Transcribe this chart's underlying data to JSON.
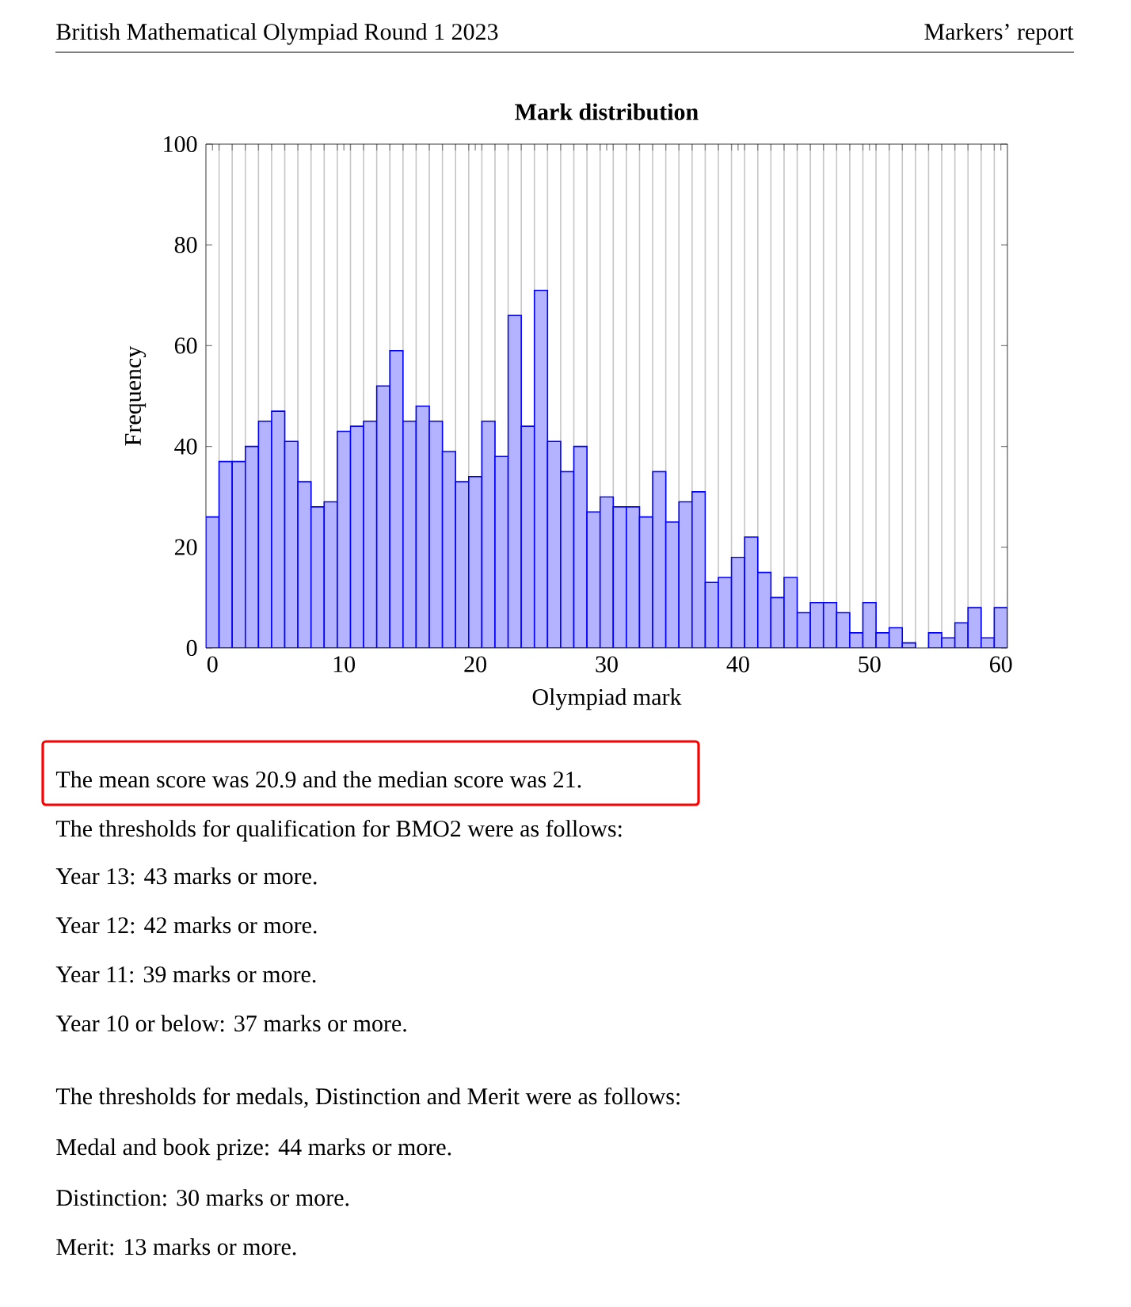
{
  "chart_data": {
    "type": "histogram",
    "title": "Mark distribution",
    "xlabel": "Olympiad mark",
    "ylabel": "Frequency",
    "bins": [
      -0.5,
      0.5,
      1.5,
      2.5,
      3.5,
      4.5,
      5.5,
      6.5,
      7.5,
      8.5,
      9.5,
      10.5,
      11.5,
      12.5,
      13.5,
      14.5,
      15.5,
      16.5,
      17.5,
      18.5,
      19.5,
      20.5,
      21.5,
      22.5,
      23.5,
      24.5,
      25.5,
      26.5,
      27.5,
      28.5,
      29.5,
      30.5,
      31.5,
      32.5,
      33.5,
      34.5,
      35.5,
      36.5,
      37.5,
      38.5,
      39.5,
      40.5,
      41.5,
      42.5,
      43.5,
      44.5,
      45.5,
      46.5,
      47.5,
      48.5,
      49.5,
      50.5,
      51.5,
      52.5,
      53.5,
      54.5,
      55.5,
      56.5,
      57.5,
      58.5,
      59.5,
      60.5
    ],
    "values": [
      26,
      37,
      37,
      40,
      45,
      47,
      41,
      33,
      28,
      29,
      43,
      44,
      45,
      52,
      59,
      45,
      48,
      45,
      39,
      33,
      34,
      45,
      38,
      66,
      44,
      71,
      41,
      35,
      40,
      27,
      30,
      28,
      28,
      26,
      35,
      25,
      29,
      31,
      13,
      14,
      18,
      22,
      15,
      10,
      14,
      7,
      9,
      9,
      7,
      3,
      9,
      3,
      4,
      1,
      0,
      3,
      2,
      5,
      8,
      2,
      8
    ],
    "color": "#b3b3ff",
    "xlim": [
      -0.5,
      60.5
    ],
    "xticks": [
      0,
      10,
      20,
      30,
      40,
      50,
      60
    ],
    "ylim": [
      0,
      100
    ],
    "yticks": [
      0,
      20,
      40,
      60,
      80,
      100
    ],
    "grid": "x",
    "annotations": [
      "British Mathematical Olympiad Round 1 2023",
      "Markers’ report",
      "The mean score was 20.9 and the median score was 21.",
      "The thresholds for qualification for BMO2 were as follows:",
      "Year 13: 43 marks or more.",
      "Year 12: 42 marks or more.",
      "Year 11: 39 marks or more.",
      "Year 10 or below: 37 marks or more.",
      "The thresholds for medals, Distinction and Merit were as follows:",
      "Medal and book prize: 44 marks or more.",
      "Distinction: 30 marks or more.",
      "Merit: 13 marks or more."
    ]
  }
}
